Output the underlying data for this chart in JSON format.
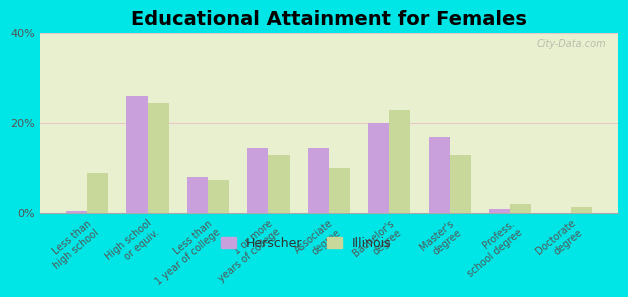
{
  "title": "Educational Attainment for Females",
  "categories": [
    "Less than\nhigh school",
    "High school\nor equiv.",
    "Less than\n1 year of college",
    "1 or more\nyears of college",
    "Associate\ndegree",
    "Bachelor's\ndegree",
    "Master's\ndegree",
    "Profess.\nschool degree",
    "Doctorate\ndegree"
  ],
  "herscher": [
    0.5,
    26.0,
    8.0,
    14.5,
    14.5,
    20.0,
    17.0,
    1.0,
    0.0
  ],
  "illinois": [
    9.0,
    24.5,
    7.5,
    13.0,
    10.0,
    23.0,
    13.0,
    2.0,
    1.5
  ],
  "herscher_color": "#c9a0dc",
  "illinois_color": "#c8d89a",
  "background_plot": "#e8f0d0",
  "background_fig": "#00e5e5",
  "ylim": [
    0,
    40
  ],
  "yticks": [
    0,
    20,
    40
  ],
  "ytick_labels": [
    "0%",
    "20%",
    "40%"
  ],
  "bar_width": 0.35,
  "title_fontsize": 14,
  "tick_fontsize": 7,
  "legend_fontsize": 9,
  "watermark": "City-Data.com"
}
